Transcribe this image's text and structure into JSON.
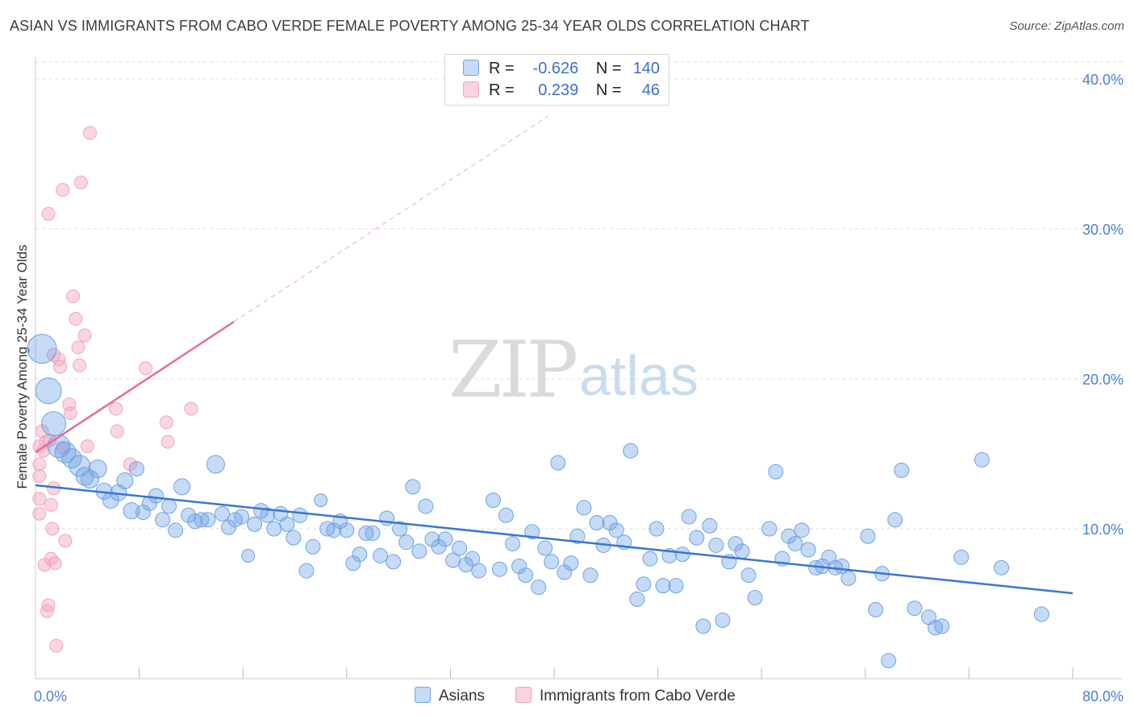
{
  "title": "ASIAN VS IMMIGRANTS FROM CABO VERDE FEMALE POVERTY AMONG 25-34 YEAR OLDS CORRELATION CHART",
  "source": "Source: ZipAtlas.com",
  "watermark": {
    "zip": "ZIP",
    "atlas": "atlas"
  },
  "legend": {
    "rows": [
      {
        "r_label": "R =",
        "r_value": "-0.626",
        "n_label": "N =",
        "n_value": "140"
      },
      {
        "r_label": "R =",
        "r_value": "0.239",
        "n_label": "N =",
        "n_value": "46"
      }
    ]
  },
  "bottom_legend": [
    "Asians",
    "Immigrants from Cabo Verde"
  ],
  "chart_data": {
    "type": "scatter",
    "ylabel": "Female Poverty Among 25-34 Year Olds",
    "x_tick_labels": [
      "0.0%",
      "80.0%"
    ],
    "y_tick_labels": [
      "10.0%",
      "20.0%",
      "30.0%",
      "40.0%"
    ],
    "xlim": [
      0,
      80
    ],
    "ylim": [
      0,
      41.5
    ],
    "grid": true,
    "colors": {
      "asians": "#6fa3e6",
      "cabo": "#f3a4bd",
      "asians_line": "#3a75d2",
      "cabo_line": "#e56e96"
    },
    "series": [
      {
        "name": "Asians",
        "trend": {
          "x0": 0,
          "y0": 12.9,
          "x1": 80,
          "y1": 5.7
        },
        "points": [
          [
            0.5,
            22.0,
            18
          ],
          [
            1.0,
            19.2,
            16
          ],
          [
            1.4,
            17.0,
            15
          ],
          [
            1.8,
            15.5,
            14
          ],
          [
            2.3,
            15.1,
            13
          ],
          [
            2.8,
            14.7,
            12
          ],
          [
            3.4,
            14.2,
            13
          ],
          [
            3.8,
            13.5,
            11
          ],
          [
            4.2,
            13.3,
            11
          ],
          [
            4.8,
            14.0,
            11
          ],
          [
            5.3,
            12.5,
            10
          ],
          [
            5.8,
            11.9,
            10
          ],
          [
            6.4,
            12.4,
            10
          ],
          [
            6.9,
            13.2,
            10
          ],
          [
            7.4,
            11.2,
            10
          ],
          [
            7.8,
            14.0,
            9
          ],
          [
            8.3,
            11.1,
            9
          ],
          [
            8.8,
            11.7,
            9
          ],
          [
            9.3,
            12.2,
            9
          ],
          [
            9.8,
            10.6,
            9
          ],
          [
            10.3,
            11.5,
            9
          ],
          [
            10.8,
            9.9,
            9
          ],
          [
            11.3,
            12.8,
            10
          ],
          [
            11.8,
            10.9,
            9
          ],
          [
            12.3,
            10.5,
            9
          ],
          [
            12.8,
            10.6,
            9
          ],
          [
            13.3,
            10.6,
            9
          ],
          [
            13.9,
            14.3,
            11
          ],
          [
            14.4,
            11.0,
            9
          ],
          [
            14.9,
            10.1,
            9
          ],
          [
            15.4,
            10.6,
            9
          ],
          [
            15.9,
            10.8,
            9
          ],
          [
            16.4,
            8.2,
            8
          ],
          [
            16.9,
            10.3,
            9
          ],
          [
            17.4,
            11.2,
            9
          ],
          [
            17.9,
            10.9,
            9
          ],
          [
            18.4,
            10.0,
            9
          ],
          [
            18.9,
            11.0,
            9
          ],
          [
            19.4,
            10.3,
            9
          ],
          [
            19.9,
            9.4,
            9
          ],
          [
            20.4,
            10.9,
            9
          ],
          [
            20.9,
            7.2,
            9
          ],
          [
            21.4,
            8.8,
            9
          ],
          [
            22.0,
            11.9,
            8
          ],
          [
            22.5,
            10.0,
            9
          ],
          [
            23.0,
            9.9,
            9
          ],
          [
            23.5,
            10.5,
            9
          ],
          [
            24.0,
            9.9,
            9
          ],
          [
            24.5,
            7.7,
            9
          ],
          [
            25.0,
            8.3,
            9
          ],
          [
            25.5,
            9.7,
            9
          ],
          [
            26.0,
            9.7,
            9
          ],
          [
            26.6,
            8.2,
            9
          ],
          [
            27.1,
            10.7,
            9
          ],
          [
            27.6,
            7.8,
            9
          ],
          [
            28.1,
            10.0,
            9
          ],
          [
            28.6,
            9.1,
            9
          ],
          [
            29.1,
            12.8,
            9
          ],
          [
            29.6,
            8.5,
            9
          ],
          [
            30.1,
            11.5,
            9
          ],
          [
            30.6,
            9.3,
            9
          ],
          [
            31.1,
            8.8,
            9
          ],
          [
            31.6,
            9.3,
            9
          ],
          [
            32.2,
            7.9,
            9
          ],
          [
            32.7,
            8.7,
            9
          ],
          [
            33.2,
            7.6,
            9
          ],
          [
            33.7,
            8.0,
            9
          ],
          [
            34.2,
            7.2,
            9
          ],
          [
            35.3,
            11.9,
            9
          ],
          [
            35.8,
            7.3,
            9
          ],
          [
            36.3,
            10.9,
            9
          ],
          [
            36.8,
            9.0,
            9
          ],
          [
            37.3,
            7.5,
            9
          ],
          [
            37.8,
            6.9,
            9
          ],
          [
            38.3,
            9.8,
            9
          ],
          [
            38.8,
            6.1,
            9
          ],
          [
            39.3,
            8.7,
            9
          ],
          [
            39.8,
            7.8,
            9
          ],
          [
            40.3,
            14.4,
            9
          ],
          [
            40.8,
            7.1,
            9
          ],
          [
            41.3,
            7.7,
            9
          ],
          [
            41.8,
            9.5,
            9
          ],
          [
            42.3,
            11.4,
            9
          ],
          [
            42.8,
            6.9,
            9
          ],
          [
            43.3,
            10.4,
            9
          ],
          [
            43.8,
            8.9,
            9
          ],
          [
            44.3,
            10.4,
            9
          ],
          [
            44.8,
            9.9,
            9
          ],
          [
            45.4,
            9.1,
            9
          ],
          [
            45.9,
            15.2,
            9
          ],
          [
            46.4,
            5.3,
            9
          ],
          [
            46.9,
            6.3,
            9
          ],
          [
            47.4,
            8.0,
            9
          ],
          [
            47.9,
            10.0,
            9
          ],
          [
            48.4,
            6.2,
            9
          ],
          [
            48.9,
            8.2,
            9
          ],
          [
            49.4,
            6.2,
            9
          ],
          [
            49.9,
            8.3,
            9
          ],
          [
            50.4,
            10.8,
            9
          ],
          [
            51.0,
            9.4,
            9
          ],
          [
            51.5,
            3.5,
            9
          ],
          [
            52.0,
            10.2,
            9
          ],
          [
            52.5,
            8.9,
            9
          ],
          [
            53.0,
            3.9,
            9
          ],
          [
            53.5,
            7.8,
            9
          ],
          [
            54.0,
            9.0,
            9
          ],
          [
            54.5,
            8.5,
            9
          ],
          [
            55.0,
            6.9,
            9
          ],
          [
            55.5,
            5.4,
            9
          ],
          [
            56.6,
            10.0,
            9
          ],
          [
            57.1,
            13.8,
            9
          ],
          [
            57.6,
            8.0,
            9
          ],
          [
            58.1,
            9.5,
            9
          ],
          [
            58.6,
            9.0,
            9
          ],
          [
            59.1,
            9.9,
            9
          ],
          [
            59.6,
            8.6,
            9
          ],
          [
            60.2,
            7.4,
            9
          ],
          [
            60.7,
            7.5,
            9
          ],
          [
            61.2,
            8.1,
            9
          ],
          [
            61.7,
            7.4,
            9
          ],
          [
            62.2,
            7.5,
            9
          ],
          [
            62.7,
            6.7,
            9
          ],
          [
            64.2,
            9.5,
            9
          ],
          [
            64.8,
            4.6,
            9
          ],
          [
            65.3,
            7.0,
            9
          ],
          [
            65.8,
            1.2,
            9
          ],
          [
            66.3,
            10.6,
            9
          ],
          [
            66.8,
            13.9,
            9
          ],
          [
            67.8,
            4.7,
            9
          ],
          [
            68.9,
            4.1,
            9
          ],
          [
            69.4,
            3.4,
            9
          ],
          [
            69.9,
            3.5,
            9
          ],
          [
            71.4,
            8.1,
            9
          ],
          [
            73.0,
            14.6,
            9
          ],
          [
            74.5,
            7.4,
            9
          ],
          [
            77.6,
            4.3,
            9
          ]
        ]
      },
      {
        "name": "Immigrants from Cabo Verde",
        "trend": {
          "x0": 0,
          "y0": 15.1,
          "x1": 15.3,
          "y1": 23.8,
          "dash_x1": 39.5,
          "dash_y1": 37.5
        },
        "points": [
          [
            0.3,
            15.5,
            8
          ],
          [
            0.3,
            14.3,
            8
          ],
          [
            0.3,
            13.5,
            8
          ],
          [
            0.3,
            12.0,
            8
          ],
          [
            0.3,
            11.0,
            8
          ],
          [
            0.5,
            16.5,
            8
          ],
          [
            0.6,
            15.2,
            8
          ],
          [
            0.7,
            7.6,
            8
          ],
          [
            0.8,
            15.8,
            8
          ],
          [
            0.9,
            4.5,
            8
          ],
          [
            1.0,
            4.9,
            8
          ],
          [
            1.0,
            31.0,
            8
          ],
          [
            1.1,
            15.9,
            8
          ],
          [
            1.2,
            8.0,
            8
          ],
          [
            1.2,
            11.6,
            8
          ],
          [
            1.3,
            10.0,
            8
          ],
          [
            1.4,
            21.6,
            8
          ],
          [
            1.4,
            12.7,
            8
          ],
          [
            1.5,
            7.7,
            8
          ],
          [
            1.6,
            2.2,
            8
          ],
          [
            1.8,
            21.3,
            8
          ],
          [
            1.9,
            20.8,
            8
          ],
          [
            2.1,
            15.4,
            8
          ],
          [
            2.1,
            32.6,
            8
          ],
          [
            2.3,
            9.2,
            8
          ],
          [
            2.6,
            18.3,
            8
          ],
          [
            2.7,
            17.7,
            8
          ],
          [
            2.9,
            25.5,
            8
          ],
          [
            3.1,
            24.0,
            8
          ],
          [
            3.3,
            22.1,
            8
          ],
          [
            3.4,
            20.9,
            8
          ],
          [
            3.5,
            33.1,
            8
          ],
          [
            3.8,
            22.9,
            8
          ],
          [
            4.0,
            15.5,
            8
          ],
          [
            4.2,
            36.4,
            8
          ],
          [
            6.2,
            18.0,
            8
          ],
          [
            6.3,
            16.5,
            8
          ],
          [
            7.3,
            14.3,
            8
          ],
          [
            8.5,
            20.7,
            8
          ],
          [
            10.1,
            17.1,
            8
          ],
          [
            10.2,
            15.8,
            8
          ],
          [
            12.0,
            18.0,
            8
          ]
        ]
      }
    ]
  }
}
